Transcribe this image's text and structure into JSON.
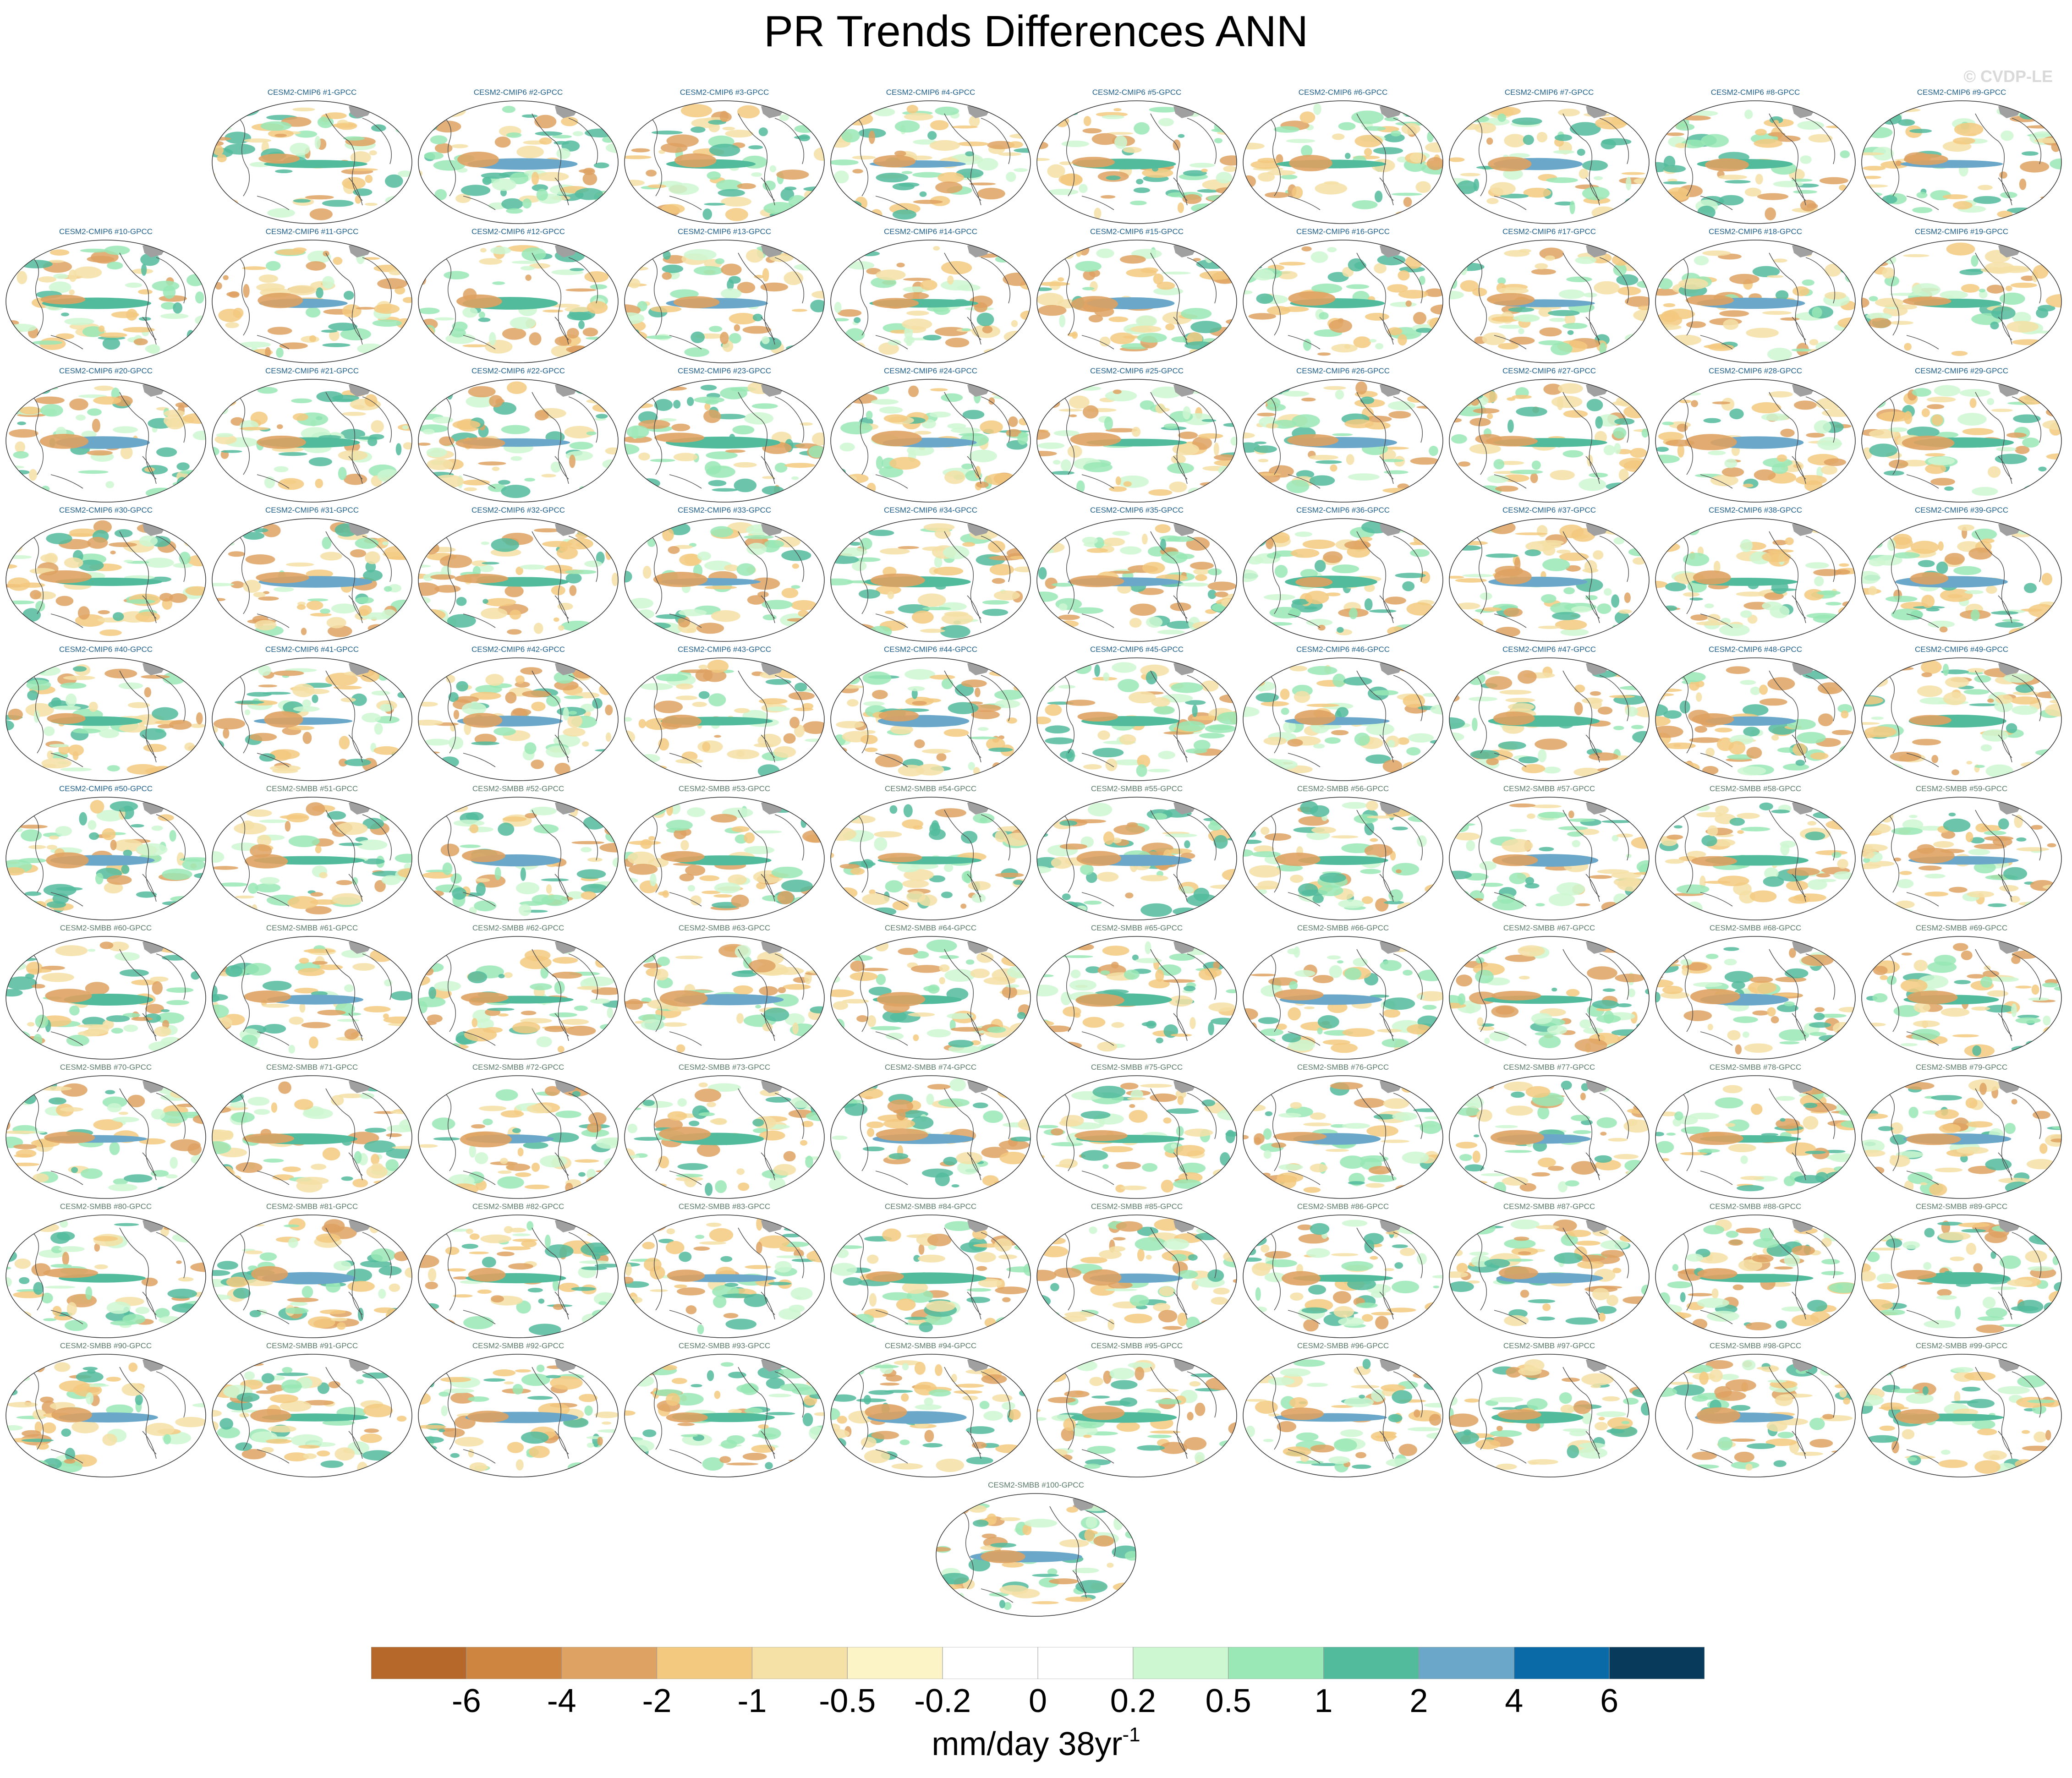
{
  "title": "PR Trends Differences ANN",
  "watermark": "© CVDP-LE",
  "units": "mm/day 38yr",
  "units_superscript": "-1",
  "colors": {
    "cmip6_title": "#1f5f8b",
    "smbb_title": "#5a7a6a",
    "land_mask": "#a0a0a0",
    "coastline": "#4d4d4d"
  },
  "chart_data": {
    "type": "heatmap",
    "title": "PR Trends Differences ANN",
    "panel_count": 100,
    "panel_titles": [
      "CESM2-CMIP6 #1-GPCC",
      "CESM2-CMIP6 #2-GPCC",
      "CESM2-CMIP6 #3-GPCC",
      "CESM2-CMIP6 #4-GPCC",
      "CESM2-CMIP6 #5-GPCC",
      "CESM2-CMIP6 #6-GPCC",
      "CESM2-CMIP6 #7-GPCC",
      "CESM2-CMIP6 #8-GPCC",
      "CESM2-CMIP6 #9-GPCC",
      "CESM2-CMIP6 #10-GPCC",
      "CESM2-CMIP6 #11-GPCC",
      "CESM2-CMIP6 #12-GPCC",
      "CESM2-CMIP6 #13-GPCC",
      "CESM2-CMIP6 #14-GPCC",
      "CESM2-CMIP6 #15-GPCC",
      "CESM2-CMIP6 #16-GPCC",
      "CESM2-CMIP6 #17-GPCC",
      "CESM2-CMIP6 #18-GPCC",
      "CESM2-CMIP6 #19-GPCC",
      "CESM2-CMIP6 #20-GPCC",
      "CESM2-CMIP6 #21-GPCC",
      "CESM2-CMIP6 #22-GPCC",
      "CESM2-CMIP6 #23-GPCC",
      "CESM2-CMIP6 #24-GPCC",
      "CESM2-CMIP6 #25-GPCC",
      "CESM2-CMIP6 #26-GPCC",
      "CESM2-CMIP6 #27-GPCC",
      "CESM2-CMIP6 #28-GPCC",
      "CESM2-CMIP6 #29-GPCC",
      "CESM2-CMIP6 #30-GPCC",
      "CESM2-CMIP6 #31-GPCC",
      "CESM2-CMIP6 #32-GPCC",
      "CESM2-CMIP6 #33-GPCC",
      "CESM2-CMIP6 #34-GPCC",
      "CESM2-CMIP6 #35-GPCC",
      "CESM2-CMIP6 #36-GPCC",
      "CESM2-CMIP6 #37-GPCC",
      "CESM2-CMIP6 #38-GPCC",
      "CESM2-CMIP6 #39-GPCC",
      "CESM2-CMIP6 #40-GPCC",
      "CESM2-CMIP6 #41-GPCC",
      "CESM2-CMIP6 #42-GPCC",
      "CESM2-CMIP6 #43-GPCC",
      "CESM2-CMIP6 #44-GPCC",
      "CESM2-CMIP6 #45-GPCC",
      "CESM2-CMIP6 #46-GPCC",
      "CESM2-CMIP6 #47-GPCC",
      "CESM2-CMIP6 #48-GPCC",
      "CESM2-CMIP6 #49-GPCC",
      "CESM2-CMIP6 #50-GPCC",
      "CESM2-SMBB #51-GPCC",
      "CESM2-SMBB #52-GPCC",
      "CESM2-SMBB #53-GPCC",
      "CESM2-SMBB #54-GPCC",
      "CESM2-SMBB #55-GPCC",
      "CESM2-SMBB #56-GPCC",
      "CESM2-SMBB #57-GPCC",
      "CESM2-SMBB #58-GPCC",
      "CESM2-SMBB #59-GPCC",
      "CESM2-SMBB #60-GPCC",
      "CESM2-SMBB #61-GPCC",
      "CESM2-SMBB #62-GPCC",
      "CESM2-SMBB #63-GPCC",
      "CESM2-SMBB #64-GPCC",
      "CESM2-SMBB #65-GPCC",
      "CESM2-SMBB #66-GPCC",
      "CESM2-SMBB #67-GPCC",
      "CESM2-SMBB #68-GPCC",
      "CESM2-SMBB #69-GPCC",
      "CESM2-SMBB #70-GPCC",
      "CESM2-SMBB #71-GPCC",
      "CESM2-SMBB #72-GPCC",
      "CESM2-SMBB #73-GPCC",
      "CESM2-SMBB #74-GPCC",
      "CESM2-SMBB #75-GPCC",
      "CESM2-SMBB #76-GPCC",
      "CESM2-SMBB #77-GPCC",
      "CESM2-SMBB #78-GPCC",
      "CESM2-SMBB #79-GPCC",
      "CESM2-SMBB #80-GPCC",
      "CESM2-SMBB #81-GPCC",
      "CESM2-SMBB #82-GPCC",
      "CESM2-SMBB #83-GPCC",
      "CESM2-SMBB #84-GPCC",
      "CESM2-SMBB #85-GPCC",
      "CESM2-SMBB #86-GPCC",
      "CESM2-SMBB #87-GPCC",
      "CESM2-SMBB #88-GPCC",
      "CESM2-SMBB #89-GPCC",
      "CESM2-SMBB #90-GPCC",
      "CESM2-SMBB #91-GPCC",
      "CESM2-SMBB #92-GPCC",
      "CESM2-SMBB #93-GPCC",
      "CESM2-SMBB #94-GPCC",
      "CESM2-SMBB #95-GPCC",
      "CESM2-SMBB #96-GPCC",
      "CESM2-SMBB #97-GPCC",
      "CESM2-SMBB #98-GPCC",
      "CESM2-SMBB #99-GPCC",
      "CESM2-SMBB #100-GPCC"
    ],
    "colorbar": {
      "labels": [
        "-6",
        "-4",
        "-2",
        "-1",
        "-0.5",
        "-0.2",
        "0",
        "0.2",
        "0.5",
        "1",
        "2",
        "4",
        "6"
      ],
      "colors": [
        "#b5682a",
        "#cd853f",
        "#dea262",
        "#f3c97f",
        "#f5e0a6",
        "#fcf3c6",
        "#ffffff",
        "#ffffff",
        "#ccf7d1",
        "#99e8b5",
        "#52bb9c",
        "#6aa7c9",
        "#0a6aa8",
        "#083a5c"
      ]
    },
    "units": "mm/day 38yr-1"
  }
}
